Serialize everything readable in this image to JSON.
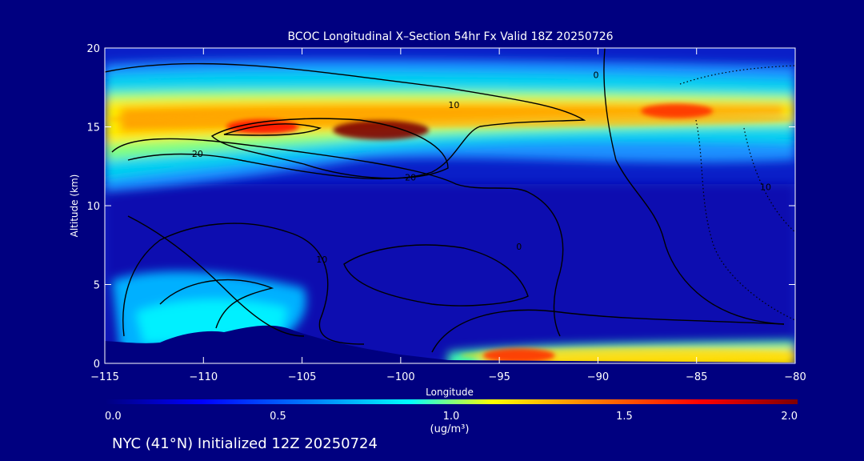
{
  "chart_data": {
    "type": "heatmap",
    "title": "BCOC Longitudinal X–Section 54hr  Fx Valid 18Z 20250726",
    "xlabel": "Longitude",
    "ylabel": "Altitude (km)",
    "xlim": [
      -115,
      -80
    ],
    "ylim": [
      0,
      20
    ],
    "x_ticks": [
      -115,
      -110,
      -105,
      -100,
      -95,
      -90,
      -85,
      -80
    ],
    "x_tick_labels": [
      "−115",
      "−110",
      "−105",
      "−100",
      "−95",
      "−90",
      "−85",
      "−80"
    ],
    "y_ticks": [
      0,
      5,
      10,
      15,
      20
    ],
    "y_tick_labels": [
      "0",
      "5",
      "10",
      "15",
      "20"
    ],
    "colorbar": {
      "min": 0.0,
      "max": 2.0,
      "ticks": [
        0.0,
        0.5,
        1.0,
        1.5,
        2.0
      ],
      "tick_labels": [
        "0.0",
        "0.5",
        "1.0",
        "1.5",
        "2.0"
      ],
      "units": "(ug/m³)",
      "colors": [
        "#00007f",
        "#0000ff",
        "#0080ff",
        "#00ffff",
        "#ffff00",
        "#ff8000",
        "#ff0000",
        "#7f0000"
      ]
    },
    "concentration_features": [
      {
        "feature": "upper band",
        "lon_range": [
          -115,
          -80
        ],
        "alt_center": 15.5,
        "value": 1.3
      },
      {
        "feature": "maximum",
        "lon": -101,
        "alt": 14.8,
        "value": 2.0
      },
      {
        "feature": "secondary maximum",
        "lon": -107,
        "alt": 15.0,
        "value": 1.7
      },
      {
        "feature": "eastern maximum",
        "lon": -86,
        "alt": 16.0,
        "value": 1.6
      },
      {
        "feature": "surface layer",
        "lon_range": [
          -97,
          -80
        ],
        "alt_center": 0.5,
        "value": 1.2
      },
      {
        "feature": "surface maximum",
        "lon": -94,
        "alt": 0.5,
        "value": 1.6
      }
    ],
    "contour_labels": [
      {
        "text": "10",
        "lon": -97.3,
        "alt": 16.4
      },
      {
        "text": "20",
        "lon": -110.3,
        "alt": 13.3
      },
      {
        "text": "20",
        "lon": -99.5,
        "alt": 11.8
      },
      {
        "text": "0",
        "lon": -90.1,
        "alt": 18.3
      },
      {
        "text": "10",
        "lon": -104,
        "alt": 6.6
      },
      {
        "text": "0",
        "lon": -94,
        "alt": 7.4
      },
      {
        "text": "10",
        "lon": -81.5,
        "alt": 11.2
      }
    ],
    "footer": "NYC (41°N) Initialized 12Z 20250724"
  }
}
